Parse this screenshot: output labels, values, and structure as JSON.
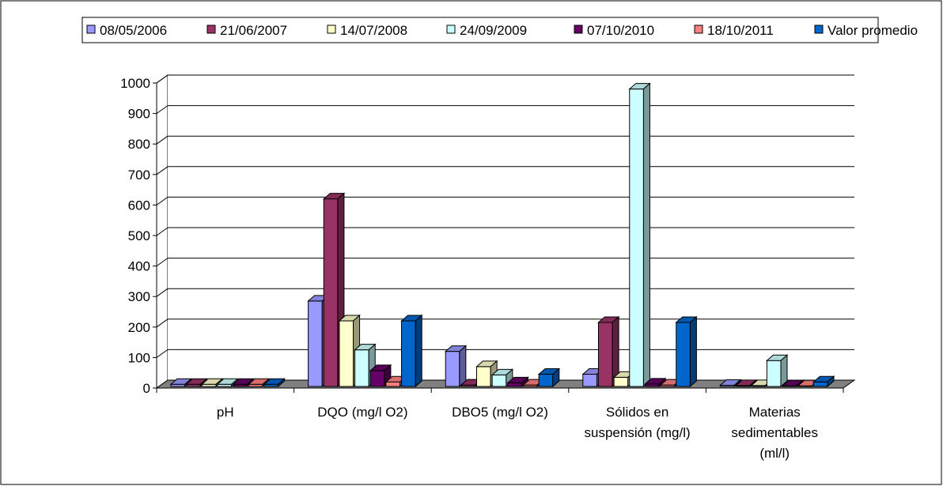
{
  "chart_data": {
    "type": "bar",
    "title": "",
    "xlabel": "",
    "ylabel": "",
    "ylim": [
      0,
      1000
    ],
    "yticks": [
      "0",
      "100",
      "200",
      "300",
      "400",
      "500",
      "600",
      "700",
      "800",
      "900",
      "1000"
    ],
    "categories": [
      [
        "pH"
      ],
      [
        "DQO (mg/l O2)"
      ],
      [
        "DBO5  (mg/l O2)"
      ],
      [
        "Sólidos en",
        "suspensión (mg/l)"
      ],
      [
        "Materias",
        "sedimentables",
        "(ml/l)"
      ]
    ],
    "series": [
      {
        "name": "08/05/2006",
        "color": "#9999ff",
        "values": [
          7,
          280,
          115,
          40,
          4
        ]
      },
      {
        "name": "21/06/2007",
        "color": "#993366",
        "values": [
          7,
          615,
          5,
          210,
          3
        ]
      },
      {
        "name": "14/07/2008",
        "color": "#ffffcc",
        "values": [
          7,
          215,
          65,
          30,
          3
        ]
      },
      {
        "name": "24/09/2009",
        "color": "#ccffff",
        "values": [
          7,
          120,
          38,
          975,
          85
        ]
      },
      {
        "name": "07/10/2010",
        "color": "#660066",
        "values": [
          7,
          52,
          12,
          8,
          2
        ]
      },
      {
        "name": "18/10/2011",
        "color": "#ff8080",
        "values": [
          7,
          15,
          5,
          5,
          2
        ]
      },
      {
        "name": "Valor promedio",
        "color": "#0066cc",
        "values": [
          7,
          215,
          40,
          210,
          15
        ]
      }
    ],
    "legend_position": "top",
    "grid": true,
    "style": "3d-clustered-column"
  }
}
